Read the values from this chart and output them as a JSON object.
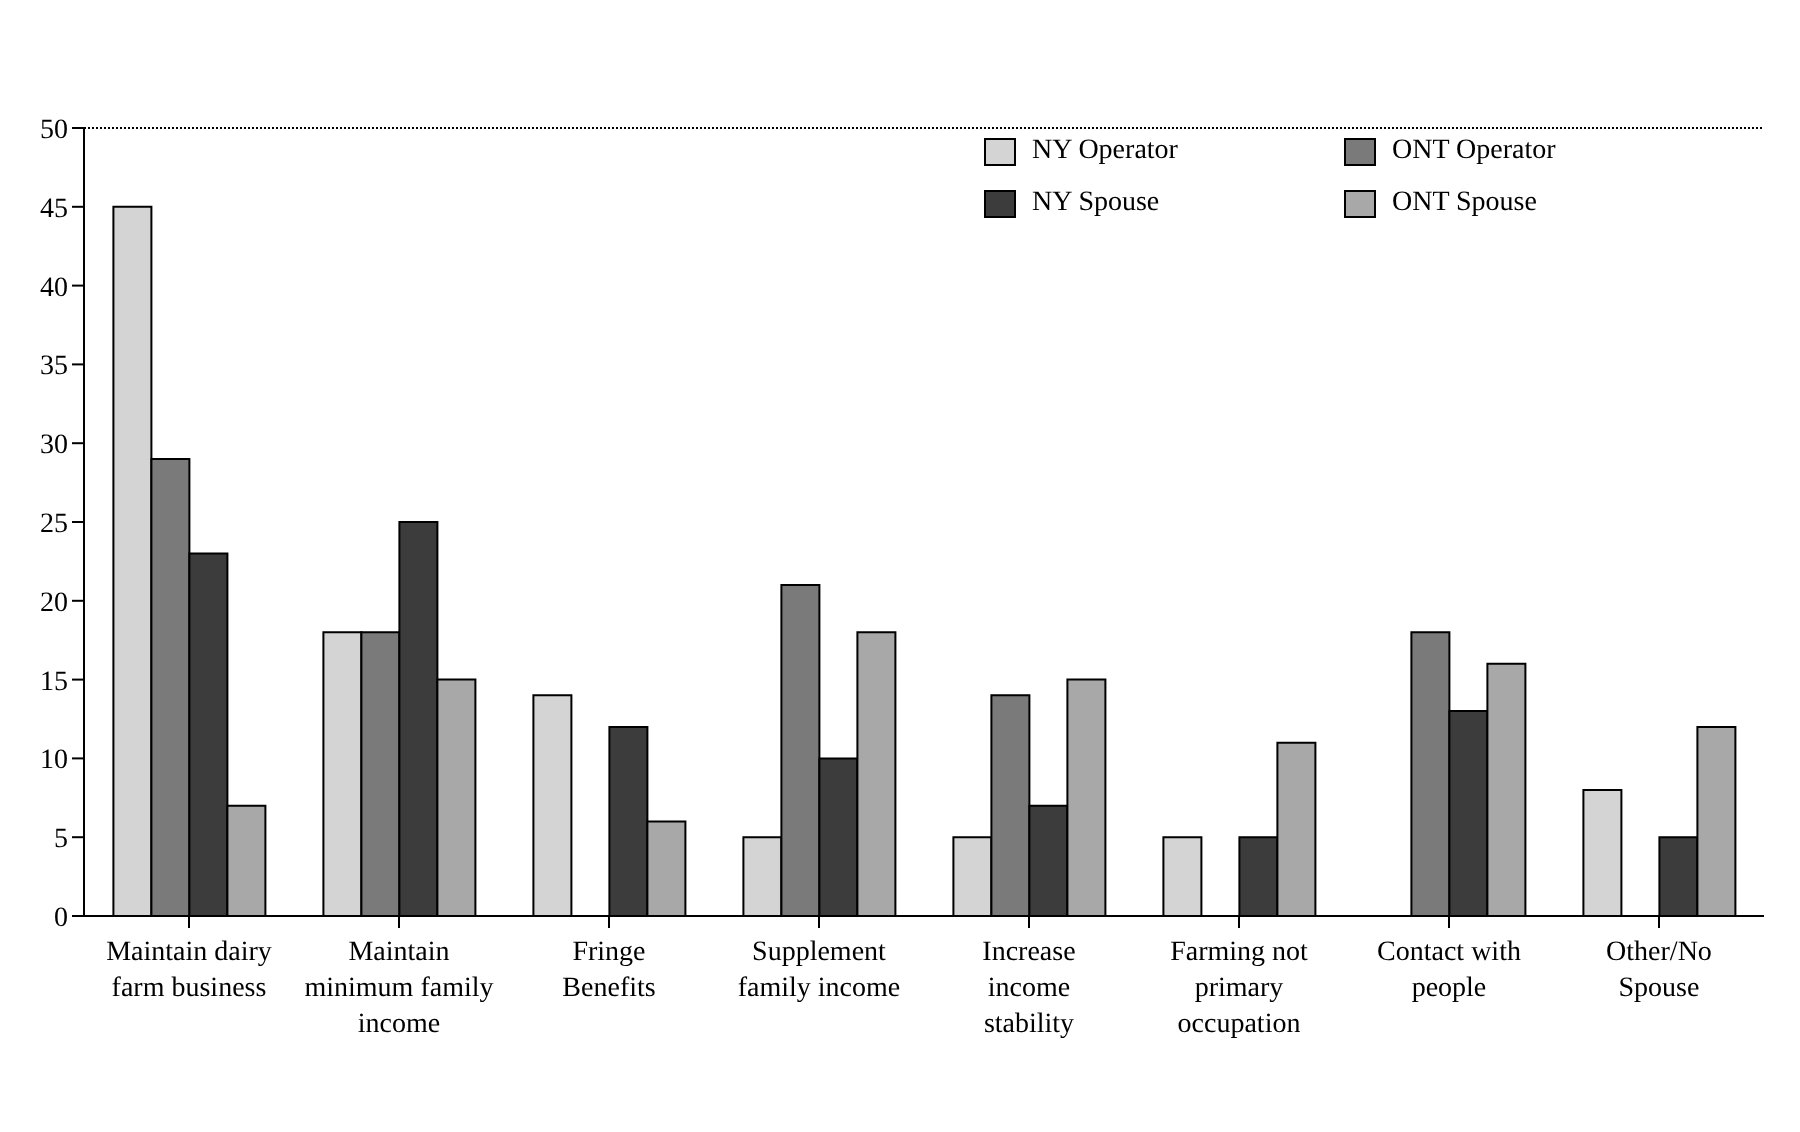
{
  "chart_data": {
    "type": "bar",
    "categories": [
      "Maintain dairy farm business",
      "Maintain minimum family income",
      "Fringe Benefits",
      "Supplement family income",
      "Increase income stability",
      "Farming not primary occupation",
      "Contact with people",
      "Other/No Spouse"
    ],
    "series": [
      {
        "name": "NY Operator",
        "color": "#d4d4d4",
        "values": [
          45,
          18,
          14,
          5,
          5,
          5,
          0,
          8
        ]
      },
      {
        "name": "ONT Operator",
        "color": "#7a7a7a",
        "values": [
          29,
          18,
          0,
          21,
          14,
          0,
          18,
          0
        ]
      },
      {
        "name": "NY Spouse",
        "color": "#3c3c3c",
        "values": [
          23,
          25,
          12,
          10,
          7,
          5,
          13,
          5
        ]
      },
      {
        "name": "ONT Spouse",
        "color": "#a8a8a8",
        "values": [
          7,
          15,
          6,
          18,
          15,
          11,
          16,
          12
        ]
      }
    ],
    "ylim": [
      0,
      50
    ],
    "yticks": [
      0,
      5,
      10,
      15,
      20,
      25,
      30,
      35,
      40,
      45,
      50
    ],
    "legend": "top right"
  }
}
